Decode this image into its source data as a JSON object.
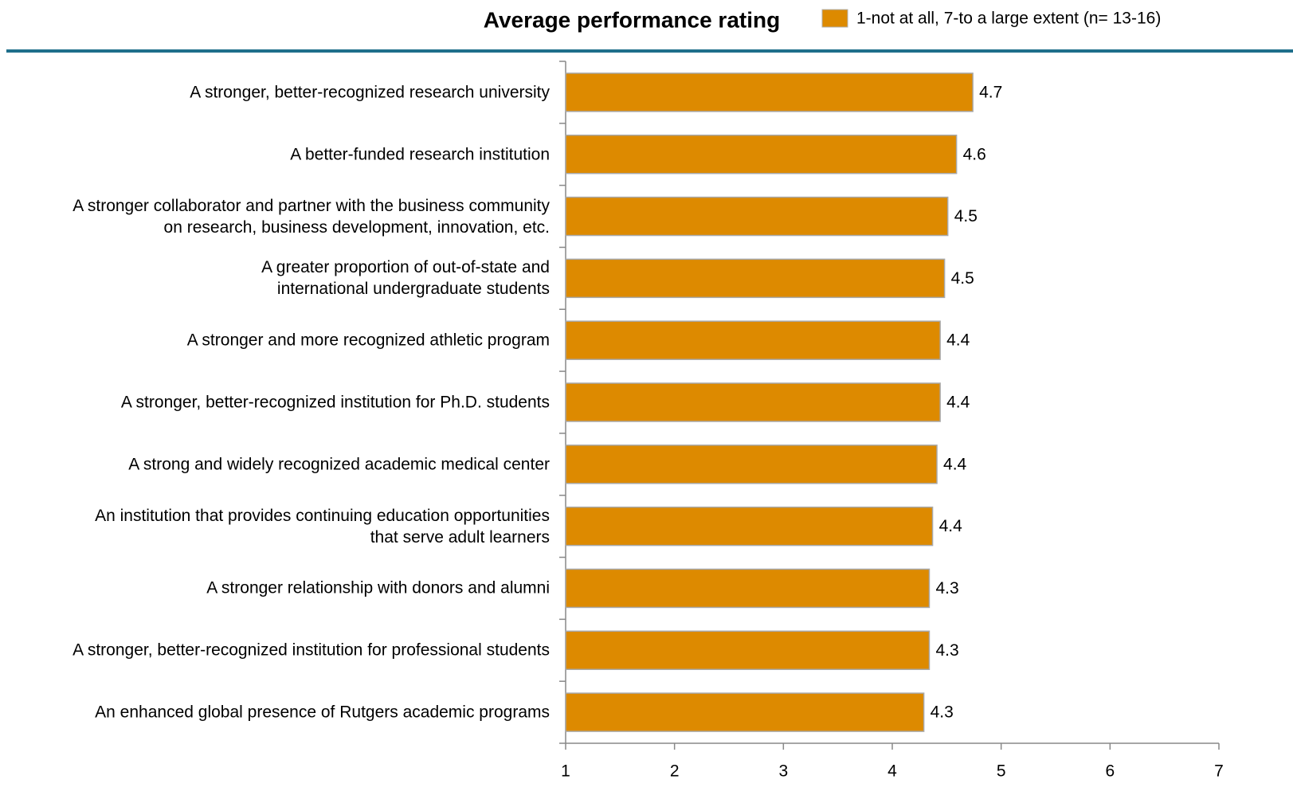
{
  "chart_data": {
    "type": "barh",
    "title": "Average performance rating",
    "legend": "1-not at all, 7-to a large extent (n= 13-16)",
    "color": "#dd8a00",
    "categories": [
      "A stronger, better-recognized research university",
      "A better-funded research institution",
      "A stronger collaborator and partner with the business community\non research, business development, innovation, etc.",
      "A greater proportion of out-of-state and\ninternational undergraduate students",
      "A stronger and more recognized athletic program",
      "A stronger, better-recognized institution for Ph.D. students",
      "A strong and widely recognized academic medical center",
      "An institution that provides continuing education opportunities\nthat serve adult learners",
      "A stronger relationship with donors and alumni",
      "A stronger, better-recognized institution for professional students",
      "An enhanced global presence of Rutgers academic programs"
    ],
    "values": [
      4.74,
      4.59,
      4.51,
      4.48,
      4.44,
      4.44,
      4.41,
      4.37,
      4.34,
      4.34,
      4.29
    ],
    "value_labels": [
      "4.7",
      "4.6",
      "4.5",
      "4.5",
      "4.4",
      "4.4",
      "4.4",
      "4.4",
      "4.3",
      "4.3",
      "4.3"
    ],
    "xlim": [
      1,
      7
    ],
    "xticks": [
      1,
      2,
      3,
      4,
      5,
      6,
      7
    ]
  }
}
